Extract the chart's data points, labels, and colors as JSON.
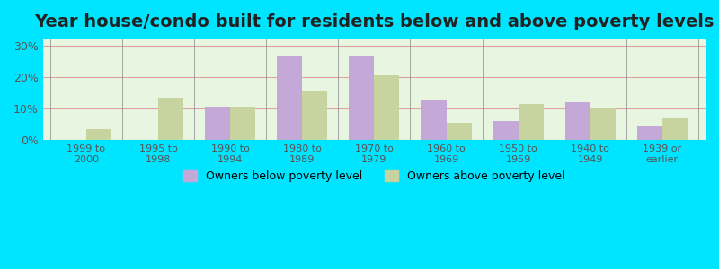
{
  "title": "Year house/condo built for residents below and above poverty levels",
  "categories": [
    "1999 to\n2000",
    "1995 to\n1998",
    "1990 to\n1994",
    "1980 to\n1989",
    "1970 to\n1979",
    "1960 to\n1969",
    "1950 to\n1959",
    "1940 to\n1949",
    "1939 or\nearlier"
  ],
  "below_poverty": [
    0,
    0,
    10.5,
    26.5,
    26.5,
    13.0,
    6.0,
    12.0,
    4.5
  ],
  "above_poverty": [
    3.5,
    13.5,
    10.5,
    15.5,
    20.5,
    5.5,
    11.5,
    10.0,
    7.0
  ],
  "below_color": "#c4a8d8",
  "above_color": "#c8d4a0",
  "ylim": [
    0,
    32
  ],
  "yticks": [
    0,
    10,
    20,
    30
  ],
  "ytick_labels": [
    "0%",
    "10%",
    "20%",
    "30%"
  ],
  "legend_below": "Owners below poverty level",
  "legend_above": "Owners above poverty level",
  "bg_color_left": "#e8f5e0",
  "bg_color_right": "#f0fdf0",
  "outer_bg": "#00e5ff",
  "title_fontsize": 14,
  "bar_width": 0.35
}
